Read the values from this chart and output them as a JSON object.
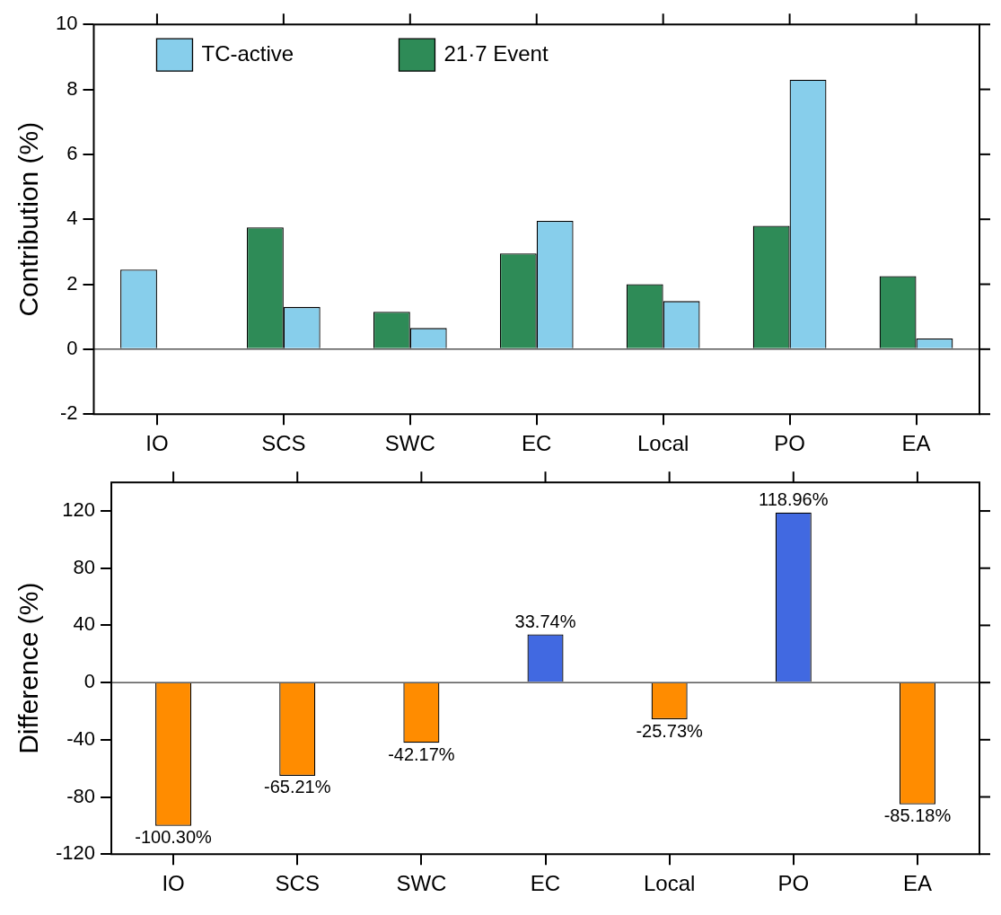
{
  "chart_data": [
    {
      "type": "bar",
      "ylabel": "Contribution (%)",
      "categories": [
        "IO",
        "SCS",
        "SWC",
        "EC",
        "Local",
        "PO",
        "EA"
      ],
      "series": [
        {
          "name": "21·7 Event",
          "color": "#2e8b57",
          "colors": [
            "#87ceeb",
            "#2e8b57",
            "#2e8b57",
            "#2e8b57",
            "#2e8b57",
            "#2e8b57",
            "#2e8b57"
          ],
          "values": [
            2.45,
            3.75,
            1.15,
            2.95,
            2.0,
            3.8,
            2.25
          ]
        },
        {
          "name": "TC-active",
          "color": "#87ceeb",
          "values": [
            0,
            1.3,
            0.65,
            3.95,
            1.48,
            8.3,
            0.33
          ]
        }
      ],
      "ylim": [
        -2,
        10
      ],
      "yticks": [
        -2,
        0,
        2,
        4,
        6,
        8,
        10
      ],
      "legend": "top left",
      "ref_lines": [
        {
          "axis": "y",
          "value": 0
        }
      ]
    },
    {
      "type": "bar",
      "ylabel": "Difference (%)",
      "categories": [
        "IO",
        "SCS",
        "SWC",
        "EC",
        "Local",
        "PO",
        "EA"
      ],
      "values": [
        -100.3,
        -65.21,
        -42.17,
        33.74,
        -25.73,
        118.96,
        -85.18
      ],
      "colors": [
        "#ff8c00",
        "#ff8c00",
        "#ff8c00",
        "#4169e1",
        "#ff8c00",
        "#4169e1",
        "#ff8c00"
      ],
      "value_labels": [
        "-100.30%",
        "-65.21%",
        "-42.17%",
        "33.74%",
        "-25.73%",
        "118.96%",
        "-85.18%"
      ],
      "ylim": [
        -120,
        140
      ],
      "yticks": [
        -120,
        -80,
        -40,
        0,
        40,
        80,
        120
      ],
      "ref_lines": [
        {
          "axis": "y",
          "value": 0
        }
      ]
    }
  ]
}
